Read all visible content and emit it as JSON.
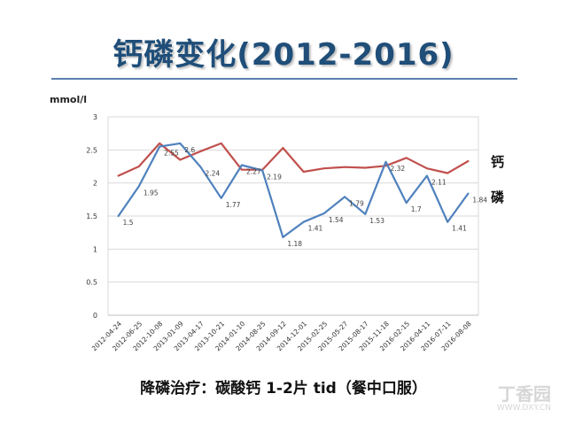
{
  "title": "钙磷变化(2012-2016)",
  "unit": "mmol/l",
  "series_labels": {
    "calcium": "钙",
    "phosphorus": "磷"
  },
  "footer": "降磷治疗：碳酸钙 1-2片 tid（餐中口服）",
  "watermark": {
    "brand": "丁香园",
    "url": "WWW.DXY.CN"
  },
  "colors": {
    "calcium": "#c0504d",
    "phosphorus": "#4f81bd",
    "title": "#1f4e79",
    "grid": "#d9d9d9"
  },
  "chart_data": {
    "type": "line",
    "title": "钙磷变化(2012-2016)",
    "ylabel": "mmol/l",
    "ylim": [
      0,
      3
    ],
    "yticks": [
      0,
      0.5,
      1,
      1.5,
      2,
      2.5,
      3
    ],
    "grid": true,
    "categories": [
      "2012-04-24",
      "2012-06-25",
      "2012-10-08",
      "2013-01-09",
      "2013-04-17",
      "2013-10-21",
      "2014-01-10",
      "2014-08-25",
      "2014-09-12",
      "2014-12-01",
      "2015-02-25",
      "2015-05-27",
      "2015-08-17",
      "2015-11-18",
      "2016-02-15",
      "2016-04-11",
      "2016-07-11",
      "2016-08-08"
    ],
    "series": [
      {
        "name": "钙",
        "values": [
          2.11,
          2.25,
          2.6,
          2.35,
          2.48,
          2.6,
          2.2,
          2.2,
          2.53,
          2.17,
          2.22,
          2.24,
          2.23,
          2.26,
          2.38,
          2.22,
          2.15,
          2.33
        ]
      },
      {
        "name": "磷",
        "values": [
          1.5,
          1.95,
          2.55,
          2.6,
          2.24,
          1.77,
          2.27,
          2.19,
          1.18,
          1.41,
          1.54,
          1.79,
          1.53,
          2.32,
          1.7,
          2.11,
          1.41,
          1.84
        ],
        "labels": [
          "1.5",
          "1.95",
          "2.55",
          "2.6",
          "2.24",
          "1.77",
          "2.27",
          "2.19",
          "1.18",
          "1.41",
          "1.54",
          "1.79",
          "1.53",
          "2.32",
          "1.7",
          "2.11",
          "1.41",
          "1.84"
        ]
      }
    ]
  }
}
